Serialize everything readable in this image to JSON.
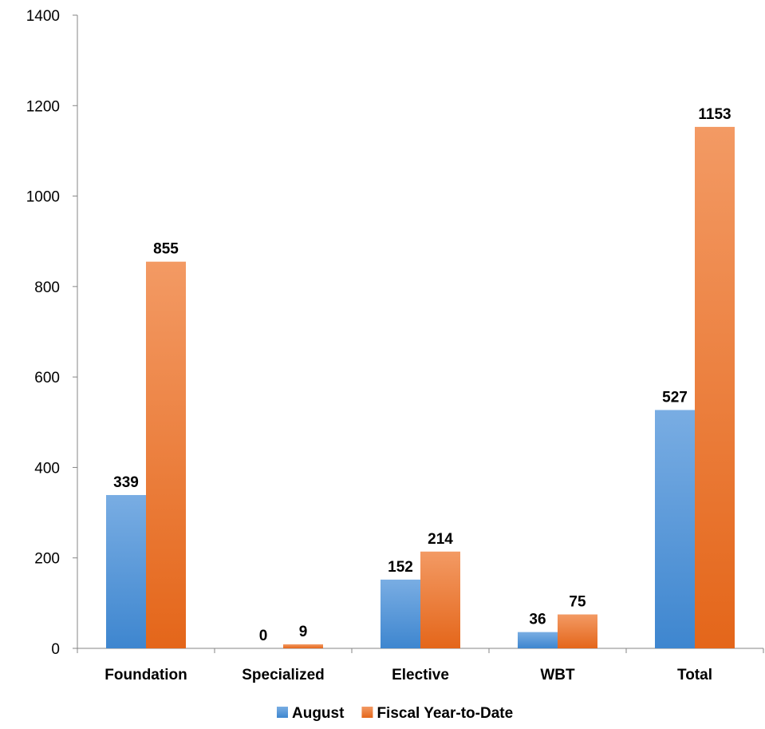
{
  "chart_data": {
    "type": "bar",
    "categories": [
      "Foundation",
      "Specialized",
      "Elective",
      "WBT",
      "Total"
    ],
    "series": [
      {
        "name": "August",
        "values": [
          339,
          0,
          152,
          36,
          527
        ],
        "color": "#4a89d4"
      },
      {
        "name": "Fiscal Year-to-Date",
        "values": [
          855,
          9,
          214,
          75,
          1153
        ],
        "color": "#ef7a2e"
      }
    ],
    "y_ticks": [
      "0",
      "200",
      "400",
      "600",
      "800",
      "1000",
      "1200",
      "1400"
    ],
    "ylim": [
      0,
      1400
    ],
    "grid": false,
    "legend": "bottom",
    "data_labels": true
  }
}
